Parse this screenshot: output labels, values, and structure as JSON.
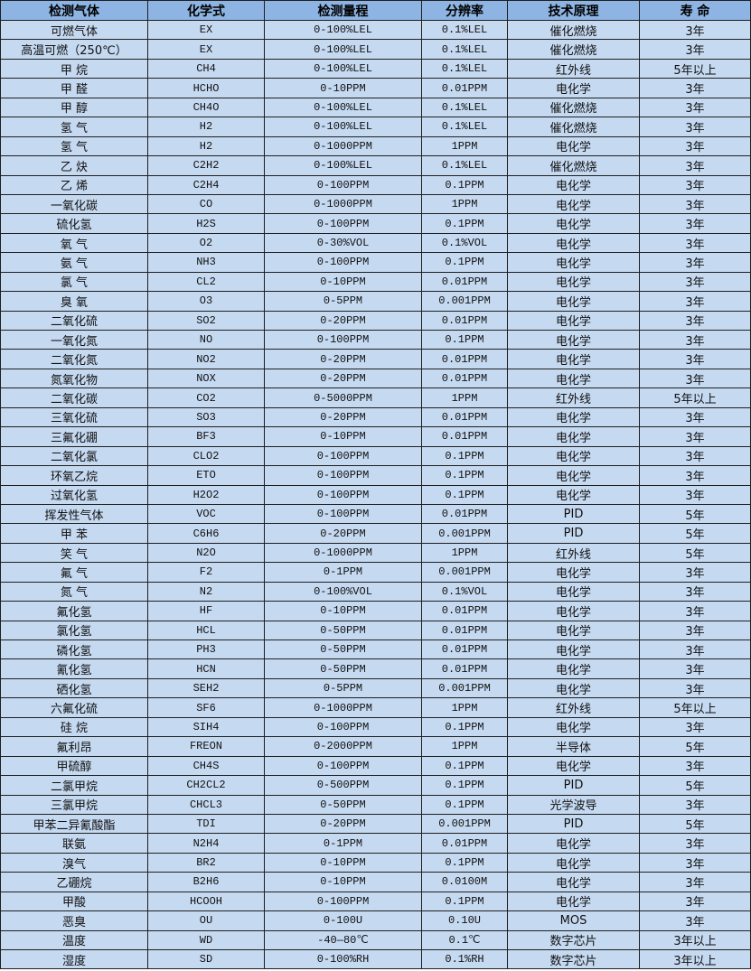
{
  "colors": {
    "header_bg": "#8db4e2",
    "row_bg": "#c5d9f1",
    "border": "#1f1f1f"
  },
  "headers": [
    "检测气体",
    "化学式",
    "检测量程",
    "分辨率",
    "技术原理",
    "寿 命"
  ],
  "rows": [
    [
      "可燃气体",
      "EX",
      "0-100%LEL",
      "0.1%LEL",
      "催化燃烧",
      "3年"
    ],
    [
      "高温可燃（250℃）",
      "EX",
      "0-100%LEL",
      "0.1%LEL",
      "催化燃烧",
      "3年"
    ],
    [
      "甲 烷",
      "CH4",
      "0-100%LEL",
      "0.1%LEL",
      "红外线",
      "5年以上"
    ],
    [
      "甲 醛",
      "HCHO",
      "0-10PPM",
      "0.01PPM",
      "电化学",
      "3年"
    ],
    [
      "甲 醇",
      "CH4O",
      "0-100%LEL",
      "0.1%LEL",
      "催化燃烧",
      "3年"
    ],
    [
      "氢 气",
      "H2",
      "0-100%LEL",
      "0.1%LEL",
      "催化燃烧",
      "3年"
    ],
    [
      "氢 气",
      "H2",
      "0-1000PPM",
      "1PPM",
      "电化学",
      "3年"
    ],
    [
      "乙 炔",
      "C2H2",
      "0-100%LEL",
      "0.1%LEL",
      "催化燃烧",
      "3年"
    ],
    [
      "乙 烯",
      "C2H4",
      "0-100PPM",
      "0.1PPM",
      "电化学",
      "3年"
    ],
    [
      "一氧化碳",
      "CO",
      "0-1000PPM",
      "1PPM",
      "电化学",
      "3年"
    ],
    [
      "硫化氢",
      "H2S",
      "0-100PPM",
      "0.1PPM",
      "电化学",
      "3年"
    ],
    [
      "氧 气",
      "O2",
      "0-30%VOL",
      "0.1%VOL",
      "电化学",
      "3年"
    ],
    [
      "氨 气",
      "NH3",
      "0-100PPM",
      "0.1PPM",
      "电化学",
      "3年"
    ],
    [
      "氯 气",
      "CL2",
      "0-10PPM",
      "0.01PPM",
      "电化学",
      "3年"
    ],
    [
      "臭 氧",
      "O3",
      "0-5PPM",
      "0.001PPM",
      "电化学",
      "3年"
    ],
    [
      "二氧化硫",
      "SO2",
      "0-20PPM",
      "0.01PPM",
      "电化学",
      "3年"
    ],
    [
      "一氧化氮",
      "NO",
      "0-100PPM",
      "0.1PPM",
      "电化学",
      "3年"
    ],
    [
      "二氧化氮",
      "NO2",
      "0-20PPM",
      "0.01PPM",
      "电化学",
      "3年"
    ],
    [
      "氮氧化物",
      "NOX",
      "0-20PPM",
      "0.01PPM",
      "电化学",
      "3年"
    ],
    [
      "二氧化碳",
      "CO2",
      "0-5000PPM",
      "1PPM",
      "红外线",
      "5年以上"
    ],
    [
      "三氧化硫",
      "SO3",
      "0-20PPM",
      "0.01PPM",
      "电化学",
      "3年"
    ],
    [
      "三氟化硼",
      "BF3",
      "0-10PPM",
      "0.01PPM",
      "电化学",
      "3年"
    ],
    [
      "二氧化氯",
      "CLO2",
      "0-100PPM",
      "0.1PPM",
      "电化学",
      "3年"
    ],
    [
      "环氧乙烷",
      "ETO",
      "0-100PPM",
      "0.1PPM",
      "电化学",
      "3年"
    ],
    [
      "过氧化氢",
      "H2O2",
      "0-100PPM",
      "0.1PPM",
      "电化学",
      "3年"
    ],
    [
      "挥发性气体",
      "VOC",
      "0-100PPM",
      "0.01PPM",
      "PID",
      "5年"
    ],
    [
      "甲 苯",
      "C6H6",
      "0-20PPM",
      "0.001PPM",
      "PID",
      "5年"
    ],
    [
      "笑 气",
      "N2O",
      "0-1000PPM",
      "1PPM",
      "红外线",
      "5年"
    ],
    [
      "氟 气",
      "F2",
      "0-1PPM",
      "0.001PPM",
      "电化学",
      "3年"
    ],
    [
      "氮 气",
      "N2",
      "0-100%VOL",
      "0.1%VOL",
      "电化学",
      "3年"
    ],
    [
      "氟化氢",
      "HF",
      "0-10PPM",
      "0.01PPM",
      "电化学",
      "3年"
    ],
    [
      "氯化氢",
      "HCL",
      "0-50PPM",
      "0.01PPM",
      "电化学",
      "3年"
    ],
    [
      "磷化氢",
      "PH3",
      "0-50PPM",
      "0.01PPM",
      "电化学",
      "3年"
    ],
    [
      "氰化氢",
      "HCN",
      "0-50PPM",
      "0.01PPM",
      "电化学",
      "3年"
    ],
    [
      "硒化氢",
      "SEH2",
      "0-5PPM",
      "0.001PPM",
      "电化学",
      "3年"
    ],
    [
      "六氟化硫",
      "SF6",
      "0-1000PPM",
      "1PPM",
      "红外线",
      "5年以上"
    ],
    [
      "硅 烷",
      "SIH4",
      "0-100PPM",
      "0.1PPM",
      "电化学",
      "3年"
    ],
    [
      "氟利昂",
      "FREON",
      "0-2000PPM",
      "1PPM",
      "半导体",
      "5年"
    ],
    [
      "甲硫醇",
      "CH4S",
      "0-100PPM",
      "0.1PPM",
      "电化学",
      "3年"
    ],
    [
      "二氯甲烷",
      "CH2CL2",
      "0-500PPM",
      "0.1PPM",
      "PID",
      "5年"
    ],
    [
      "三氯甲烷",
      "CHCL3",
      "0-50PPM",
      "0.1PPM",
      "光学波导",
      "3年"
    ],
    [
      "甲苯二异氰酸酯",
      "TDI",
      "0-20PPM",
      "0.001PPM",
      "PID",
      "5年"
    ],
    [
      "联氨",
      "N2H4",
      "0-1PPM",
      "0.01PPM",
      "电化学",
      "3年"
    ],
    [
      "溴气",
      "BR2",
      "0-10PPM",
      "0.1PPM",
      "电化学",
      "3年"
    ],
    [
      "乙硼烷",
      "B2H6",
      "0-10PPM",
      "0.0100M",
      "电化学",
      "3年"
    ],
    [
      "甲酸",
      "HCOOH",
      "0-100PPM",
      "0.1PPM",
      "电化学",
      "3年"
    ],
    [
      "恶臭",
      "OU",
      "0-100U",
      "0.10U",
      "MOS",
      "3年"
    ],
    [
      "温度",
      "WD",
      "-40—80℃",
      "0.1℃",
      "数字芯片",
      "3年以上"
    ],
    [
      "湿度",
      "SD",
      "0-100%RH",
      "0.1%RH",
      "数字芯片",
      "3年以上"
    ]
  ]
}
